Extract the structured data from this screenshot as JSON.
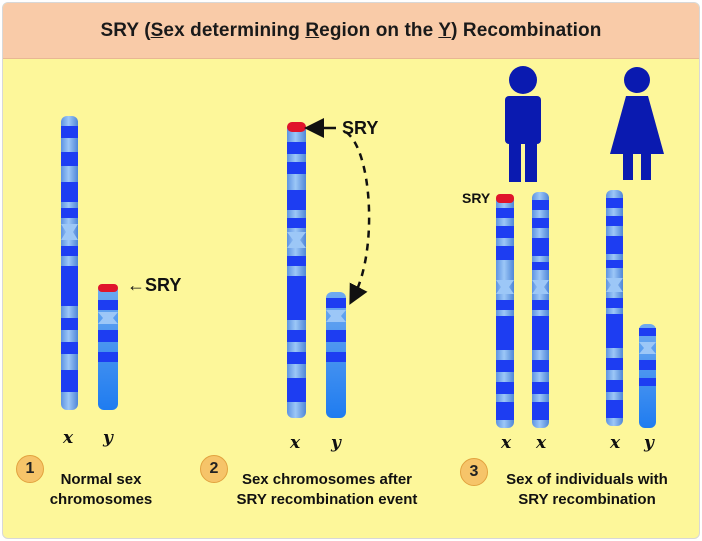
{
  "title": {
    "pre": "SRY (",
    "s1": "S",
    "t1": "ex determining ",
    "s2": "R",
    "t2": "egion on the ",
    "s3": "Y",
    "t3": ") Recombination"
  },
  "labels": {
    "sry": "SRY",
    "arrow_sry": "←SRY",
    "x": "x",
    "y": "y"
  },
  "steps": [
    {
      "number": "1",
      "line1": "Normal sex",
      "line2": "chromosomes"
    },
    {
      "number": "2",
      "line1": "Sex chromosomes after",
      "line2": "SRY recombination event"
    },
    {
      "number": "3",
      "line1": "Sex of individuals with",
      "line2": "SRY recombination"
    }
  ],
  "icons": [
    "male-figure-icon",
    "female-figure-icon"
  ],
  "colors": {
    "background": "#fdf79a",
    "title_bar": "#f9cba8",
    "chromosome_light": "#7fb2ee",
    "band_dark": "#1d3df2",
    "sry_region": "#e0142b",
    "figure": "#0a1ab0",
    "step_circle": "#f6c469"
  }
}
